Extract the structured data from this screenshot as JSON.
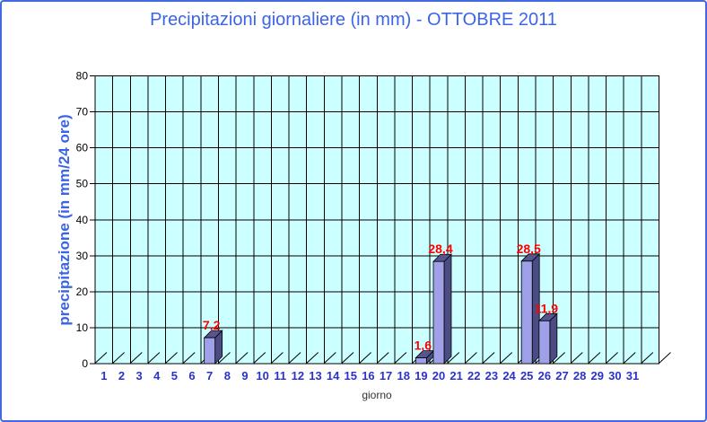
{
  "window": {
    "background": "#FFFFFF",
    "border_color": "#4169E1"
  },
  "chart_data": {
    "type": "bar",
    "style": "excel-3d-bar",
    "title": "Precipitazioni giornaliere (in mm) - OTTOBRE 2011",
    "xlabel": "giorno",
    "ylabel": "precipitazione (in mm/24 ore)",
    "categories": [
      1,
      2,
      3,
      4,
      5,
      6,
      7,
      8,
      9,
      10,
      11,
      12,
      13,
      14,
      15,
      16,
      17,
      18,
      19,
      20,
      21,
      22,
      23,
      24,
      25,
      26,
      27,
      28,
      29,
      30,
      31
    ],
    "values": [
      0,
      0,
      0,
      0,
      0,
      0,
      7.2,
      0,
      0,
      0,
      0,
      0,
      0,
      0,
      0,
      0,
      0,
      0,
      1.6,
      28.4,
      0,
      0,
      0,
      0,
      28.5,
      11.9,
      0,
      0,
      0,
      0,
      0
    ],
    "points": [
      {
        "day": 7,
        "value": 7.2,
        "label": "7,2"
      },
      {
        "day": 19,
        "value": 1.6,
        "label": "1,6"
      },
      {
        "day": 20,
        "value": 28.4,
        "label": "28,4"
      },
      {
        "day": 25,
        "value": 28.5,
        "label": "28,5"
      },
      {
        "day": 26,
        "value": 11.9,
        "label": "11,9"
      }
    ],
    "ylim": [
      0,
      80
    ],
    "yticks": [
      0,
      10,
      20,
      30,
      40,
      50,
      60,
      70,
      80
    ],
    "ytick_interval": 10,
    "grid": true,
    "legend": false,
    "extra_empty_category_slot": true,
    "colors": {
      "title": "#3C64E6",
      "y_axis_title": "#3C64E6",
      "x_axis_title": "#333333",
      "day_labels": "#2B32CC",
      "y_tick_labels": "#000000",
      "value_labels": "#FF0000",
      "plot_background": "#CCFFFF",
      "gridline": "#000000",
      "bar_front": "#A0A0E8",
      "bar_side": "#4C4C84",
      "bar_top": "#56568E"
    }
  }
}
